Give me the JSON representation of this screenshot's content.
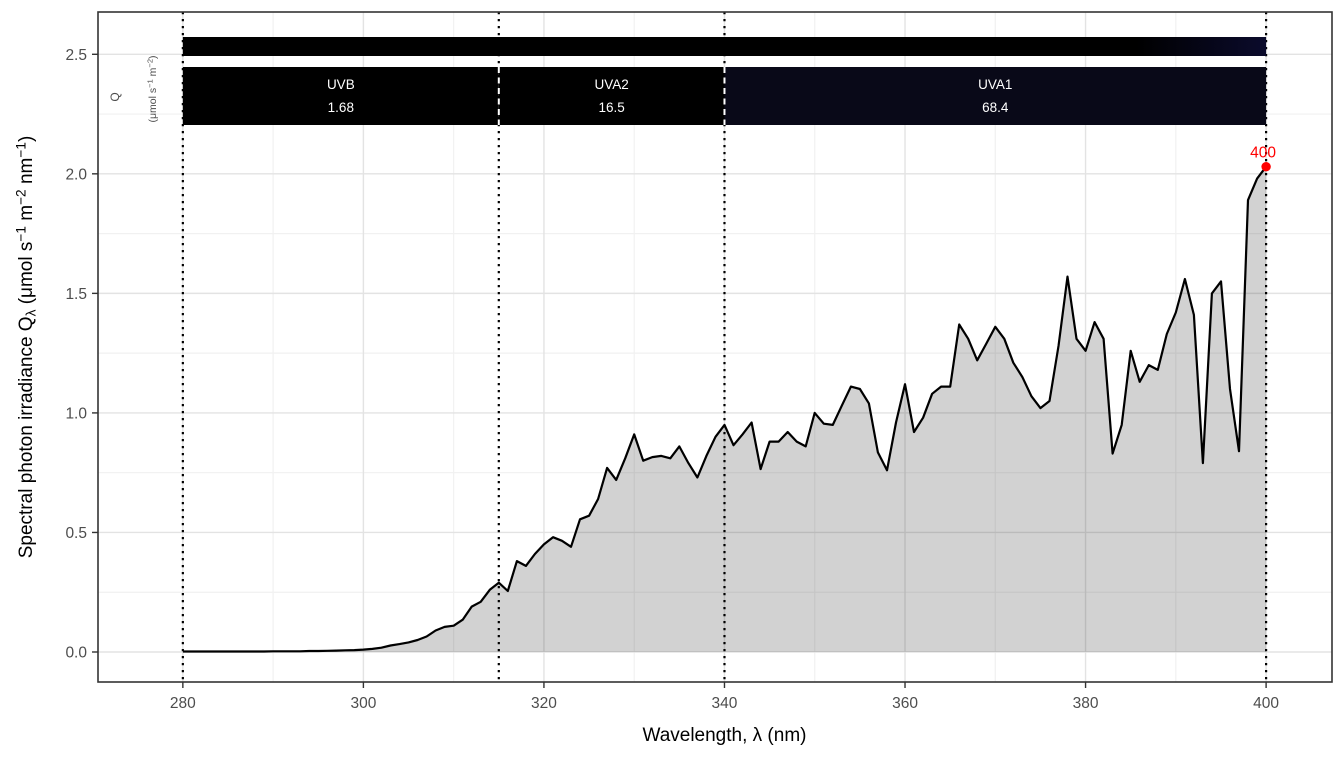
{
  "chart_data": {
    "type": "area",
    "title": "",
    "xlabel": "Wavelength, λ (nm)",
    "ylabel_parts": [
      {
        "text": "Spectral photon irradiance Q",
        "style": "normal"
      },
      {
        "text": "λ",
        "style": "sub"
      },
      {
        "text": " (μmol s",
        "style": "normal"
      },
      {
        "text": "−1",
        "style": "sup"
      },
      {
        "text": " m",
        "style": "normal"
      },
      {
        "text": "−2",
        "style": "sup"
      },
      {
        "text": " nm",
        "style": "normal"
      },
      {
        "text": "−1",
        "style": "sup"
      },
      {
        "text": ")",
        "style": "normal"
      }
    ],
    "inner_label_parts": [
      {
        "text": "(μmol s",
        "style": "normal"
      },
      {
        "text": "−1",
        "style": "sup"
      },
      {
        "text": " m",
        "style": "normal"
      },
      {
        "text": "−2",
        "style": "sup"
      },
      {
        "text": ")",
        "style": "normal"
      }
    ],
    "inner_label_q": "Q",
    "xlim": [
      270.6,
      407.3
    ],
    "ylim": [
      -0.1255,
      2.6769
    ],
    "grid": true,
    "legend_position": "none",
    "x_ticks": [
      {
        "v": 280,
        "label": "280"
      },
      {
        "v": 300,
        "label": "300"
      },
      {
        "v": 320,
        "label": "320"
      },
      {
        "v": 340,
        "label": "340"
      },
      {
        "v": 360,
        "label": "360"
      },
      {
        "v": 380,
        "label": "380"
      },
      {
        "v": 400,
        "label": "400"
      }
    ],
    "x_minor": [
      290,
      310,
      330,
      350,
      370,
      390
    ],
    "y_ticks": [
      {
        "v": 0.0,
        "label": "0.0"
      },
      {
        "v": 0.5,
        "label": "0.5"
      },
      {
        "v": 1.0,
        "label": "1.0"
      },
      {
        "v": 1.5,
        "label": "1.5"
      },
      {
        "v": 2.0,
        "label": "2.0"
      },
      {
        "v": 2.5,
        "label": "2.5"
      }
    ],
    "y_minor": [
      0.25,
      0.75,
      1.25,
      1.75,
      2.25
    ],
    "guide_wavelengths": [
      280,
      315,
      340,
      400
    ],
    "bands": [
      {
        "label": "UVB",
        "value": "1.68",
        "range": [
          280,
          315
        ],
        "color": "#000000"
      },
      {
        "label": "UVA2",
        "value": "16.5",
        "range": [
          315,
          340
        ],
        "color": "#000000"
      },
      {
        "label": "UVA1",
        "value": "68.4",
        "range": [
          340,
          400
        ],
        "color": "#090918"
      }
    ],
    "spectrum_strip": {
      "range": [
        280,
        400
      ],
      "gradient": [
        {
          "offset": "0%",
          "color": "#000000"
        },
        {
          "offset": "88%",
          "color": "#000000"
        },
        {
          "offset": "100%",
          "color": "#0b0b2c"
        }
      ]
    },
    "peak_marker": {
      "x": 400,
      "y": 2.03,
      "label": "400",
      "color": "#ff0000"
    },
    "colors": {
      "line": "#000000",
      "area_fill": "rgba(0,0,0,0.175)",
      "grid_major": "#e3e3e3",
      "grid_minor": "#f1f1f1",
      "panel_border": "#343434",
      "tick": "#333333",
      "tick_label": "#4d4d4d",
      "axis_title": "#000000",
      "band_text": "#ffffff",
      "guide_line": "#000000",
      "separator": "#ffffff"
    },
    "series": {
      "name": "spectral photon irradiance",
      "x_unit": "nm",
      "points": [
        [
          280,
          0.002
        ],
        [
          281,
          0.002
        ],
        [
          282,
          0.002
        ],
        [
          283,
          0.002
        ],
        [
          284,
          0.002
        ],
        [
          285,
          0.002
        ],
        [
          286,
          0.002
        ],
        [
          287,
          0.002
        ],
        [
          288,
          0.002
        ],
        [
          289,
          0.002
        ],
        [
          290,
          0.003
        ],
        [
          291,
          0.003
        ],
        [
          292,
          0.003
        ],
        [
          293,
          0.003
        ],
        [
          294,
          0.004
        ],
        [
          295,
          0.004
        ],
        [
          296,
          0.005
        ],
        [
          297,
          0.006
        ],
        [
          298,
          0.007
        ],
        [
          299,
          0.008
        ],
        [
          300,
          0.01
        ],
        [
          301,
          0.013
        ],
        [
          302,
          0.018
        ],
        [
          303,
          0.027
        ],
        [
          304,
          0.033
        ],
        [
          305,
          0.04
        ],
        [
          306,
          0.05
        ],
        [
          307,
          0.065
        ],
        [
          308,
          0.09
        ],
        [
          309,
          0.105
        ],
        [
          310,
          0.11
        ],
        [
          311,
          0.135
        ],
        [
          312,
          0.19
        ],
        [
          313,
          0.21
        ],
        [
          314,
          0.26
        ],
        [
          315,
          0.29
        ],
        [
          316,
          0.255
        ],
        [
          317,
          0.38
        ],
        [
          318,
          0.36
        ],
        [
          319,
          0.41
        ],
        [
          320,
          0.45
        ],
        [
          321,
          0.48
        ],
        [
          322,
          0.465
        ],
        [
          323,
          0.44
        ],
        [
          324,
          0.555
        ],
        [
          325,
          0.57
        ],
        [
          326,
          0.64
        ],
        [
          327,
          0.77
        ],
        [
          328,
          0.72
        ],
        [
          329,
          0.81
        ],
        [
          330,
          0.91
        ],
        [
          331,
          0.8
        ],
        [
          332,
          0.815
        ],
        [
          333,
          0.82
        ],
        [
          334,
          0.81
        ],
        [
          335,
          0.86
        ],
        [
          336,
          0.79
        ],
        [
          337,
          0.73
        ],
        [
          338,
          0.82
        ],
        [
          339,
          0.9
        ],
        [
          340,
          0.95
        ],
        [
          341,
          0.865
        ],
        [
          342,
          0.91
        ],
        [
          343,
          0.96
        ],
        [
          344,
          0.765
        ],
        [
          345,
          0.88
        ],
        [
          346,
          0.88
        ],
        [
          347,
          0.92
        ],
        [
          348,
          0.88
        ],
        [
          349,
          0.86
        ],
        [
          350,
          1.0
        ],
        [
          351,
          0.955
        ],
        [
          352,
          0.95
        ],
        [
          353,
          1.03
        ],
        [
          354,
          1.11
        ],
        [
          355,
          1.1
        ],
        [
          356,
          1.04
        ],
        [
          357,
          0.835
        ],
        [
          358,
          0.76
        ],
        [
          359,
          0.96
        ],
        [
          360,
          1.12
        ],
        [
          361,
          0.92
        ],
        [
          362,
          0.98
        ],
        [
          363,
          1.08
        ],
        [
          364,
          1.11
        ],
        [
          365,
          1.11
        ],
        [
          366,
          1.37
        ],
        [
          367,
          1.31
        ],
        [
          368,
          1.22
        ],
        [
          369,
          1.29
        ],
        [
          370,
          1.36
        ],
        [
          371,
          1.31
        ],
        [
          372,
          1.21
        ],
        [
          373,
          1.15
        ],
        [
          374,
          1.07
        ],
        [
          375,
          1.02
        ],
        [
          376,
          1.05
        ],
        [
          377,
          1.28
        ],
        [
          378,
          1.57
        ],
        [
          379,
          1.31
        ],
        [
          380,
          1.26
        ],
        [
          381,
          1.38
        ],
        [
          382,
          1.31
        ],
        [
          383,
          0.83
        ],
        [
          384,
          0.95
        ],
        [
          385,
          1.26
        ],
        [
          386,
          1.13
        ],
        [
          387,
          1.2
        ],
        [
          388,
          1.18
        ],
        [
          389,
          1.33
        ],
        [
          390,
          1.42
        ],
        [
          391,
          1.56
        ],
        [
          392,
          1.41
        ],
        [
          393,
          0.79
        ],
        [
          394,
          1.5
        ],
        [
          395,
          1.55
        ],
        [
          396,
          1.1
        ],
        [
          397,
          0.84
        ],
        [
          398,
          1.89
        ],
        [
          399,
          1.98
        ],
        [
          400,
          2.03
        ]
      ]
    }
  }
}
